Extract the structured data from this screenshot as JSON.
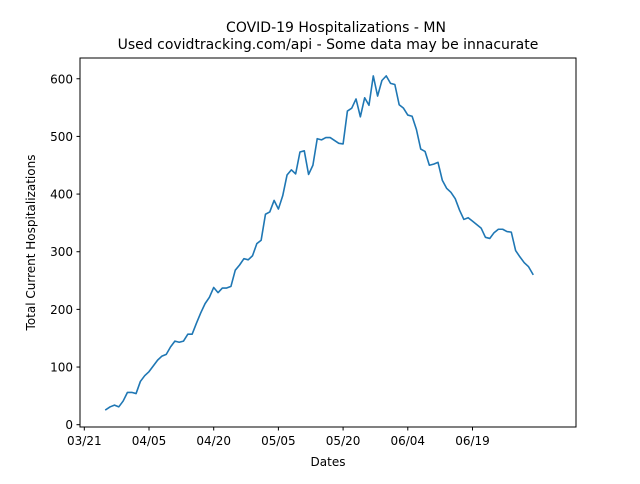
{
  "chart_data": {
    "type": "line",
    "title": "COVID-19 Hospitalizations - MN",
    "subtitle": "Used covidtracking.com/api - Some data may be innacurate",
    "xlabel": "Dates",
    "ylabel": "Total Current Hospitalizations",
    "x_tick_labels": [
      "03/21",
      "04/05",
      "04/20",
      "05/05",
      "05/20",
      "06/04",
      "06/19"
    ],
    "y_ticks": [
      0,
      100,
      200,
      300,
      400,
      500,
      600
    ],
    "ylim": [
      -4,
      636
    ],
    "xlim": [
      "2020-03-20",
      "2020-07-13"
    ],
    "grid": false,
    "line_color": "#1f77b4",
    "series": [
      {
        "x_start": "2020-03-26",
        "values": [
          26,
          31,
          34,
          31,
          41,
          56,
          56,
          54,
          75,
          85,
          92,
          102,
          112,
          119,
          122,
          135,
          145,
          143,
          145,
          157,
          157,
          176,
          194,
          210,
          221,
          238,
          229,
          237,
          237,
          240,
          268,
          277,
          288,
          286,
          293,
          314,
          320,
          365,
          369,
          389,
          374,
          397,
          433,
          442,
          435,
          473,
          475,
          434,
          450,
          496,
          494,
          498,
          498,
          493,
          488,
          487,
          544,
          549,
          565,
          534,
          567,
          554,
          605,
          570,
          597,
          605,
          592,
          590,
          555,
          549,
          537,
          535,
          512,
          478,
          474,
          450,
          452,
          455,
          424,
          410,
          403,
          392,
          372,
          356,
          359,
          353,
          347,
          341,
          325,
          323,
          333,
          339,
          339,
          335,
          334,
          302,
          291,
          281,
          274,
          261
        ]
      }
    ]
  }
}
